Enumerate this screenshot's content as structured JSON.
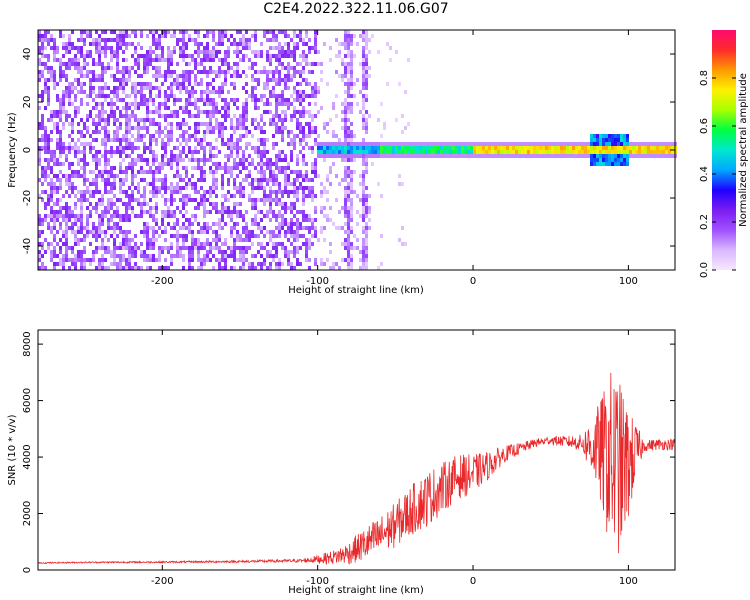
{
  "title": "C2E4.2022.322.11.06.G07",
  "chart_data": [
    {
      "type": "heatmap",
      "xlabel": "Height of straight line (km)",
      "ylabel": "Frequency (Hz)",
      "xlim": [
        -280,
        130
      ],
      "ylim": [
        -50,
        50
      ],
      "xticks": [
        -200,
        -100,
        0,
        100
      ],
      "yticks": [
        -40,
        -20,
        0,
        20,
        40
      ],
      "colorbar": {
        "label": "Normalized spectral amplitude",
        "range": [
          0,
          1
        ],
        "ticks": [
          "0.0",
          "0.2",
          "0.4",
          "0.6",
          "0.8"
        ],
        "colors": [
          "#f7e8ff",
          "#d9b8ff",
          "#a050ff",
          "#7b1cf2",
          "#1e00ff",
          "#00a8ff",
          "#00e8d0",
          "#00ff40",
          "#a8ff00",
          "#fff000",
          "#ff9a00",
          "#ff2a2a",
          "#ff0a70"
        ]
      },
      "regions": [
        {
          "x": [
            -280,
            -100
          ],
          "freq_range": [
            -50,
            50
          ],
          "note": "broadband noise, amplitude 0.1-0.3"
        },
        {
          "x": [
            -100,
            -65
          ],
          "freq_range": [
            -50,
            50
          ],
          "note": "sparser noise with vertical streaks"
        },
        {
          "x": [
            -100,
            130
          ],
          "freq_center": 0,
          "peak_amplitude": 0.9,
          "note": "carrier line near 0 Hz"
        }
      ]
    },
    {
      "type": "line",
      "xlabel": "Height of straight line (km)",
      "ylabel": "SNR (10 * v/v)",
      "xlim": [
        -280,
        130
      ],
      "ylim": [
        0,
        8500
      ],
      "xticks": [
        -200,
        -100,
        0,
        100
      ],
      "yticks": [
        0,
        2000,
        4000,
        6000,
        8000
      ],
      "color": "#e8282a",
      "series": [
        {
          "x": [
            -280,
            -250,
            -200,
            -150,
            -110,
            -100,
            -90,
            -80,
            -70,
            -60,
            -50,
            -40,
            -30,
            -20,
            -10,
            0,
            10,
            20,
            30,
            40,
            50,
            60,
            70,
            80,
            85,
            90,
            95,
            100,
            105,
            110,
            120,
            130
          ],
          "y": [
            250,
            270,
            280,
            300,
            330,
            380,
            450,
            600,
            900,
            1200,
            1600,
            2100,
            2500,
            2900,
            3300,
            3400,
            3700,
            4100,
            4300,
            4500,
            4600,
            4550,
            4500,
            4300,
            4000,
            3800,
            3600,
            3700,
            4200,
            4400,
            4450,
            4450
          ],
          "noise": [
            20,
            25,
            30,
            40,
            60,
            150,
            250,
            400,
            600,
            700,
            800,
            900,
            1000,
            900,
            800,
            700,
            500,
            300,
            200,
            150,
            150,
            200,
            300,
            1500,
            2500,
            3500,
            3000,
            2000,
            1000,
            200,
            200,
            200
          ]
        }
      ]
    }
  ]
}
